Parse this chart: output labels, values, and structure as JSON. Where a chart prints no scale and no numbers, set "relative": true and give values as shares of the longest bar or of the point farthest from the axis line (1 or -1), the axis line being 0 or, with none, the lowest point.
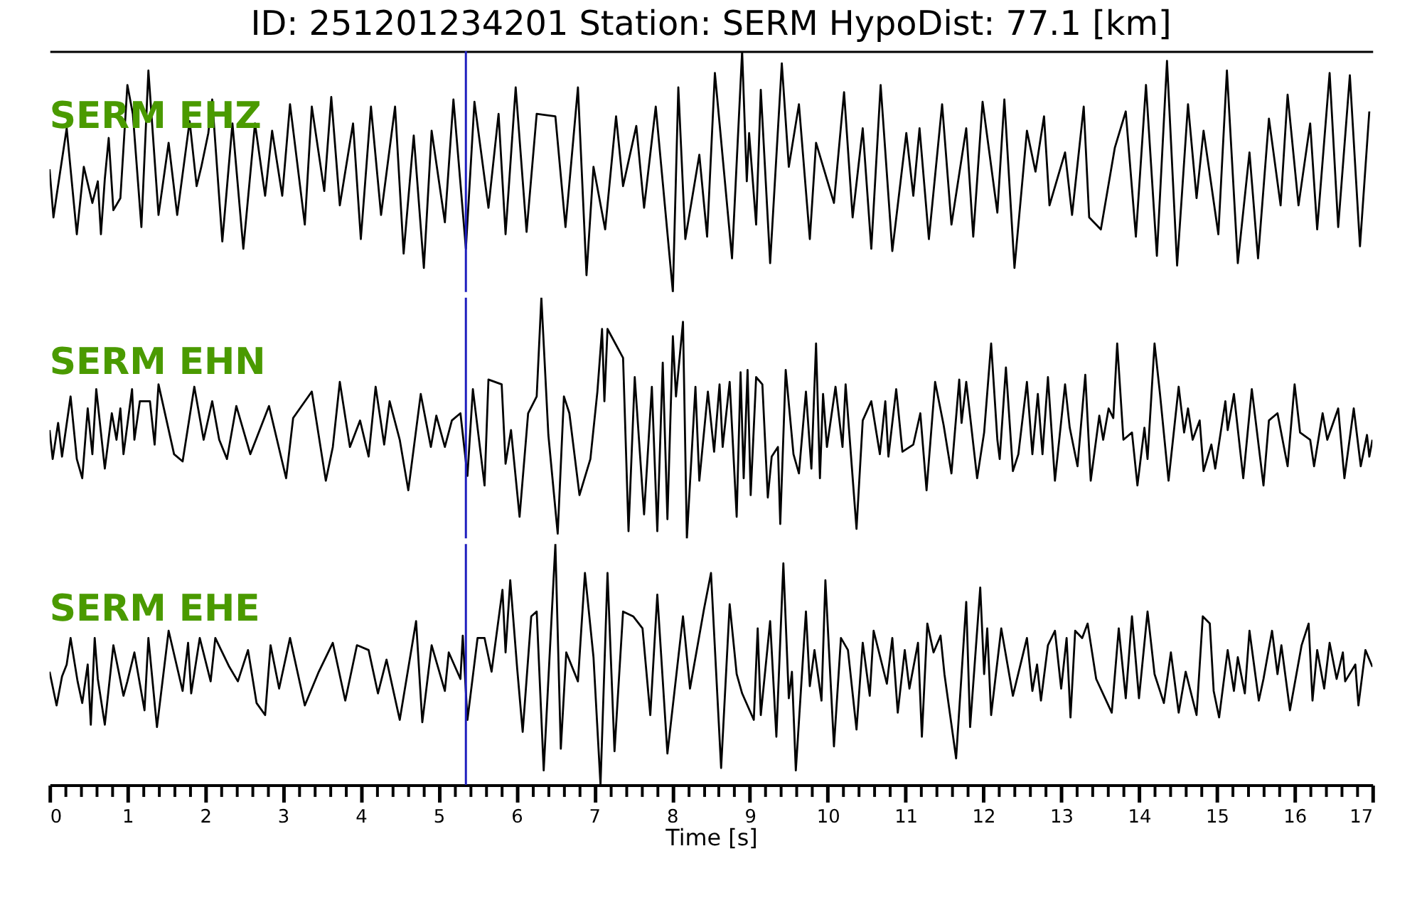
{
  "chart_data": [
    {
      "type": "line",
      "title": "ID: 251201234201   Station: SERM   HypoDist:    77.1 [km]",
      "relative": true,
      "tick_labels": false,
      "xlim": [
        0,
        17
      ],
      "annotations": [
        "SERM EHZ"
      ],
      "ref_lines": [
        {
          "axis": "x",
          "value": 5.35,
          "color": "#1f1fbf"
        }
      ],
      "series": [
        {
          "color": "#000000",
          "x": [
            0.0,
            0.05,
            0.09,
            0.22,
            0.35,
            0.44,
            0.55,
            0.62,
            0.66,
            0.71,
            0.76,
            0.82,
            0.91,
            1.0,
            1.07,
            1.18,
            1.27,
            1.4,
            1.53,
            1.64,
            1.8,
            1.89,
            1.95,
            2.04,
            2.09,
            2.22,
            2.35,
            2.49,
            2.64,
            2.77,
            2.86,
            2.99,
            3.09,
            3.28,
            3.37,
            3.53,
            3.62,
            3.73,
            3.9,
            4.0,
            4.13,
            4.26,
            4.44,
            4.55,
            4.68,
            4.81,
            4.91,
            5.08,
            5.19,
            5.35,
            5.46,
            5.64,
            5.77,
            5.86,
            5.99,
            6.13,
            6.26,
            6.5,
            6.63,
            6.79,
            6.9,
            6.99,
            7.14,
            7.28,
            7.37,
            7.54,
            7.64,
            7.79,
            8.01,
            8.08,
            8.17,
            8.35,
            8.45,
            8.55,
            8.77,
            8.9,
            8.96,
            8.99,
            9.08,
            9.14,
            9.26,
            9.41,
            9.5,
            9.63,
            9.77,
            9.85,
            10.08,
            10.21,
            10.32,
            10.45,
            10.56,
            10.68,
            10.83,
            11.01,
            11.1,
            11.18,
            11.3,
            11.47,
            11.59,
            11.78,
            11.87,
            11.99,
            12.18,
            12.27,
            12.4,
            12.56,
            12.67,
            12.78,
            12.85,
            13.05,
            13.14,
            13.29,
            13.36,
            13.51,
            13.69,
            13.83,
            13.96,
            14.09,
            14.23,
            14.36,
            14.49,
            14.63,
            14.74,
            14.83,
            15.02,
            15.13,
            15.27,
            15.42,
            15.53,
            15.67,
            15.82,
            15.91,
            16.05,
            16.2,
            16.29,
            16.45,
            16.56,
            16.71,
            16.84,
            16.96
          ],
          "values": [
            0.51,
            0.31,
            0.4,
            0.68,
            0.24,
            0.52,
            0.37,
            0.46,
            0.24,
            0.47,
            0.64,
            0.34,
            0.39,
            0.86,
            0.74,
            0.27,
            0.92,
            0.32,
            0.62,
            0.32,
            0.71,
            0.44,
            0.52,
            0.66,
            0.8,
            0.21,
            0.7,
            0.18,
            0.7,
            0.4,
            0.67,
            0.4,
            0.78,
            0.28,
            0.77,
            0.42,
            0.81,
            0.36,
            0.7,
            0.22,
            0.77,
            0.32,
            0.77,
            0.16,
            0.65,
            0.1,
            0.67,
            0.29,
            0.8,
            0.18,
            0.79,
            0.35,
            0.74,
            0.24,
            0.85,
            0.25,
            0.74,
            0.73,
            0.27,
            0.85,
            0.07,
            0.52,
            0.26,
            0.73,
            0.44,
            0.69,
            0.35,
            0.77,
            0.0,
            0.85,
            0.22,
            0.57,
            0.23,
            0.91,
            0.14,
            1.0,
            0.46,
            0.66,
            0.28,
            0.84,
            0.12,
            0.95,
            0.52,
            0.78,
            0.22,
            0.62,
            0.37,
            0.83,
            0.31,
            0.68,
            0.18,
            0.86,
            0.17,
            0.66,
            0.4,
            0.68,
            0.22,
            0.78,
            0.28,
            0.68,
            0.23,
            0.79,
            0.33,
            0.8,
            0.1,
            0.67,
            0.5,
            0.73,
            0.36,
            0.58,
            0.32,
            0.77,
            0.31,
            0.26,
            0.6,
            0.75,
            0.23,
            0.86,
            0.15,
            0.96,
            0.11,
            0.78,
            0.39,
            0.67,
            0.24,
            0.92,
            0.12,
            0.58,
            0.14,
            0.72,
            0.36,
            0.82,
            0.36,
            0.7,
            0.26,
            0.91,
            0.27,
            0.9,
            0.19,
            0.75
          ]
        }
      ]
    },
    {
      "type": "line",
      "relative": true,
      "tick_labels": false,
      "xlim": [
        0,
        17
      ],
      "annotations": [
        "SERM EHN"
      ],
      "ref_lines": [
        {
          "axis": "x",
          "value": 5.35,
          "color": "#1f1fbf"
        }
      ],
      "series": [
        {
          "color": "#000000",
          "x": [
            0.0,
            0.04,
            0.11,
            0.16,
            0.27,
            0.35,
            0.42,
            0.49,
            0.55,
            0.6,
            0.71,
            0.8,
            0.86,
            0.91,
            0.95,
            1.06,
            1.09,
            1.16,
            1.29,
            1.35,
            1.4,
            1.6,
            1.71,
            1.86,
            1.98,
            2.09,
            2.18,
            2.28,
            2.4,
            2.58,
            2.82,
            3.04,
            3.13,
            3.37,
            3.55,
            3.64,
            3.73,
            3.86,
            3.99,
            4.1,
            4.19,
            4.3,
            4.37,
            4.5,
            4.61,
            4.77,
            4.9,
            4.97,
            5.08,
            5.17,
            5.28,
            5.37,
            5.44,
            5.59,
            5.64,
            5.81,
            5.86,
            5.93,
            6.04,
            6.15,
            6.26,
            6.32,
            6.41,
            6.53,
            6.61,
            6.68,
            6.81,
            6.95,
            7.04,
            7.1,
            7.13,
            7.17,
            7.37,
            7.44,
            7.52,
            7.64,
            7.74,
            7.81,
            7.88,
            7.94,
            8.01,
            8.05,
            8.14,
            8.19,
            8.3,
            8.35,
            8.46,
            8.54,
            8.61,
            8.65,
            8.74,
            8.83,
            8.88,
            8.92,
            8.97,
            9.01,
            9.08,
            9.16,
            9.23,
            9.28,
            9.36,
            9.39,
            9.46,
            9.56,
            9.63,
            9.72,
            9.79,
            9.85,
            9.9,
            9.94,
            9.99,
            10.1,
            10.19,
            10.23,
            10.37,
            10.45,
            10.56,
            10.67,
            10.74,
            10.78,
            10.88,
            10.96,
            11.1,
            11.19,
            11.27,
            11.38,
            11.49,
            11.59,
            11.69,
            11.72,
            11.78,
            11.92,
            12.01,
            12.1,
            12.18,
            12.21,
            12.29,
            12.38,
            12.45,
            12.56,
            12.63,
            12.7,
            12.76,
            12.83,
            12.92,
            13.05,
            13.11,
            13.21,
            13.31,
            13.38,
            13.49,
            13.54,
            13.61,
            13.67,
            13.72,
            13.8,
            13.91,
            13.98,
            14.07,
            14.11,
            14.2,
            14.27,
            14.38,
            14.51,
            14.58,
            14.63,
            14.69,
            14.78,
            14.83,
            14.93,
            14.98,
            15.11,
            15.14,
            15.22,
            15.34,
            15.45,
            15.6,
            15.67,
            15.78,
            15.91,
            16.0,
            16.07,
            16.2,
            16.25,
            16.36,
            16.42,
            16.56,
            16.64,
            16.76,
            16.85,
            16.93,
            16.96,
            17.0
          ],
          "values": [
            0.45,
            0.33,
            0.48,
            0.34,
            0.59,
            0.33,
            0.25,
            0.54,
            0.35,
            0.62,
            0.29,
            0.52,
            0.41,
            0.54,
            0.35,
            0.62,
            0.41,
            0.57,
            0.57,
            0.39,
            0.64,
            0.35,
            0.32,
            0.63,
            0.41,
            0.57,
            0.41,
            0.33,
            0.55,
            0.35,
            0.55,
            0.25,
            0.5,
            0.61,
            0.24,
            0.38,
            0.65,
            0.38,
            0.49,
            0.34,
            0.63,
            0.39,
            0.57,
            0.41,
            0.2,
            0.6,
            0.38,
            0.51,
            0.38,
            0.49,
            0.52,
            0.26,
            0.62,
            0.22,
            0.66,
            0.64,
            0.31,
            0.45,
            0.09,
            0.52,
            0.59,
            1.0,
            0.43,
            0.02,
            0.59,
            0.52,
            0.18,
            0.33,
            0.61,
            0.87,
            0.57,
            0.87,
            0.75,
            0.03,
            0.67,
            0.1,
            0.63,
            0.03,
            0.73,
            0.08,
            0.84,
            0.59,
            0.9,
            0.0,
            0.63,
            0.24,
            0.61,
            0.36,
            0.64,
            0.38,
            0.65,
            0.09,
            0.69,
            0.25,
            0.7,
            0.18,
            0.67,
            0.64,
            0.17,
            0.34,
            0.38,
            0.06,
            0.7,
            0.35,
            0.27,
            0.61,
            0.29,
            0.81,
            0.25,
            0.6,
            0.38,
            0.63,
            0.38,
            0.64,
            0.04,
            0.49,
            0.57,
            0.35,
            0.57,
            0.34,
            0.62,
            0.36,
            0.39,
            0.52,
            0.2,
            0.65,
            0.47,
            0.27,
            0.66,
            0.48,
            0.65,
            0.25,
            0.44,
            0.81,
            0.41,
            0.33,
            0.71,
            0.28,
            0.35,
            0.65,
            0.35,
            0.6,
            0.35,
            0.67,
            0.24,
            0.64,
            0.46,
            0.3,
            0.68,
            0.24,
            0.51,
            0.41,
            0.54,
            0.5,
            0.81,
            0.41,
            0.44,
            0.22,
            0.46,
            0.33,
            0.81,
            0.6,
            0.24,
            0.63,
            0.44,
            0.54,
            0.41,
            0.49,
            0.28,
            0.39,
            0.29,
            0.57,
            0.45,
            0.6,
            0.25,
            0.62,
            0.22,
            0.49,
            0.52,
            0.3,
            0.64,
            0.44,
            0.41,
            0.3,
            0.52,
            0.41,
            0.54,
            0.25,
            0.54,
            0.3,
            0.43,
            0.34,
            0.41
          ]
        }
      ]
    },
    {
      "type": "line",
      "relative": true,
      "tick_labels": "x",
      "xlabel": "Time [s]",
      "xlim": [
        0,
        17
      ],
      "annotations": [
        "SERM EHE"
      ],
      "xticks": [
        0,
        {
          "value": 0.2,
          "label": null
        },
        {
          "value": 0.4,
          "label": null
        },
        {
          "value": 0.6,
          "label": null
        },
        {
          "value": 0.8,
          "label": null
        },
        1,
        {
          "value": 1.2,
          "label": null
        },
        {
          "value": 1.4,
          "label": null
        },
        {
          "value": 1.6,
          "label": null
        },
        {
          "value": 1.8,
          "label": null
        },
        2,
        {
          "value": 2.2,
          "label": null
        },
        {
          "value": 2.4,
          "label": null
        },
        {
          "value": 2.6,
          "label": null
        },
        {
          "value": 2.8,
          "label": null
        },
        3,
        {
          "value": 3.2,
          "label": null
        },
        {
          "value": 3.4,
          "label": null
        },
        {
          "value": 3.6,
          "label": null
        },
        {
          "value": 3.8,
          "label": null
        },
        4,
        {
          "value": 4.2,
          "label": null
        },
        {
          "value": 4.4,
          "label": null
        },
        {
          "value": 4.6,
          "label": null
        },
        {
          "value": 4.8,
          "label": null
        },
        5,
        {
          "value": 5.2,
          "label": null
        },
        {
          "value": 5.4,
          "label": null
        },
        {
          "value": 5.6,
          "label": null
        },
        {
          "value": 5.8,
          "label": null
        },
        6,
        {
          "value": 6.2,
          "label": null
        },
        {
          "value": 6.4,
          "label": null
        },
        {
          "value": 6.6,
          "label": null
        },
        {
          "value": 6.8,
          "label": null
        },
        7,
        {
          "value": 7.2,
          "label": null
        },
        {
          "value": 7.4,
          "label": null
        },
        {
          "value": 7.6,
          "label": null
        },
        {
          "value": 7.8,
          "label": null
        },
        8,
        {
          "value": 8.2,
          "label": null
        },
        {
          "value": 8.4,
          "label": null
        },
        {
          "value": 8.6,
          "label": null
        },
        {
          "value": 8.8,
          "label": null
        },
        9,
        {
          "value": 9.2,
          "label": null
        },
        {
          "value": 9.4,
          "label": null
        },
        {
          "value": 9.6,
          "label": null
        },
        {
          "value": 9.8,
          "label": null
        },
        10,
        {
          "value": 10.2,
          "label": null
        },
        {
          "value": 10.4,
          "label": null
        },
        {
          "value": 10.6,
          "label": null
        },
        {
          "value": 10.8,
          "label": null
        },
        11,
        {
          "value": 11.2,
          "label": null
        },
        {
          "value": 11.4,
          "label": null
        },
        {
          "value": 11.6,
          "label": null
        },
        {
          "value": 11.8,
          "label": null
        },
        12,
        {
          "value": 12.2,
          "label": null
        },
        {
          "value": 12.4,
          "label": null
        },
        {
          "value": 12.6,
          "label": null
        },
        {
          "value": 12.8,
          "label": null
        },
        13,
        {
          "value": 13.2,
          "label": null
        },
        {
          "value": 13.4,
          "label": null
        },
        {
          "value": 13.6,
          "label": null
        },
        {
          "value": 13.8,
          "label": null
        },
        14,
        {
          "value": 14.2,
          "label": null
        },
        {
          "value": 14.4,
          "label": null
        },
        {
          "value": 14.6,
          "label": null
        },
        {
          "value": 14.8,
          "label": null
        },
        15,
        {
          "value": 15.2,
          "label": null
        },
        {
          "value": 15.4,
          "label": null
        },
        {
          "value": 15.6,
          "label": null
        },
        {
          "value": 15.8,
          "label": null
        },
        16,
        {
          "value": 16.2,
          "label": null
        },
        {
          "value": 16.4,
          "label": null
        },
        {
          "value": 16.6,
          "label": null
        },
        {
          "value": 16.8,
          "label": null
        },
        17
      ],
      "ref_lines": [
        {
          "axis": "x",
          "value": 5.35,
          "color": "#1f1fbf"
        }
      ],
      "series": [
        {
          "color": "#000000",
          "x": [
            0.0,
            0.09,
            0.16,
            0.22,
            0.27,
            0.36,
            0.42,
            0.49,
            0.53,
            0.58,
            0.62,
            0.71,
            0.82,
            0.95,
            1.0,
            1.09,
            1.16,
            1.22,
            1.27,
            1.38,
            1.53,
            1.71,
            1.78,
            1.82,
            1.93,
            2.07,
            2.13,
            2.31,
            2.42,
            2.55,
            2.66,
            2.77,
            2.84,
            2.95,
            3.09,
            3.28,
            3.46,
            3.64,
            3.8,
            3.95,
            4.1,
            4.22,
            4.33,
            4.5,
            4.71,
            4.79,
            4.91,
            5.08,
            5.13,
            5.28,
            5.31,
            5.37,
            5.5,
            5.59,
            5.68,
            5.82,
            5.86,
            5.92,
            6.01,
            6.08,
            6.19,
            6.26,
            6.35,
            6.5,
            6.57,
            6.64,
            6.79,
            6.88,
            6.99,
            7.08,
            7.17,
            7.26,
            7.37,
            7.5,
            7.62,
            7.72,
            7.81,
            7.94,
            8.14,
            8.23,
            8.41,
            8.5,
            8.63,
            8.74,
            8.83,
            8.9,
            9.05,
            9.1,
            9.14,
            9.26,
            9.34,
            9.43,
            9.5,
            9.54,
            9.59,
            9.72,
            9.77,
            9.83,
            9.92,
            9.97,
            10.08,
            10.17,
            10.26,
            10.37,
            10.45,
            10.54,
            10.59,
            10.76,
            10.83,
            10.9,
            10.99,
            11.05,
            11.16,
            11.21,
            11.28,
            11.36,
            11.45,
            11.5,
            11.65,
            11.78,
            11.83,
            11.96,
            12.01,
            12.05,
            12.1,
            12.23,
            12.38,
            12.56,
            12.63,
            12.69,
            12.74,
            12.83,
            12.92,
            13.0,
            13.07,
            13.12,
            13.18,
            13.27,
            13.34,
            13.45,
            13.65,
            13.74,
            13.83,
            13.91,
            14.0,
            14.11,
            14.2,
            14.32,
            14.41,
            14.51,
            14.6,
            14.74,
            14.82,
            14.91,
            14.96,
            15.03,
            15.14,
            15.22,
            15.27,
            15.36,
            15.42,
            15.54,
            15.6,
            15.71,
            15.78,
            15.83,
            15.94,
            16.09,
            16.18,
            16.23,
            16.29,
            16.38,
            16.45,
            16.54,
            16.62,
            16.65,
            16.78,
            16.82,
            16.91,
            17.0
          ],
          "values": [
            0.47,
            0.33,
            0.45,
            0.5,
            0.61,
            0.43,
            0.34,
            0.5,
            0.25,
            0.61,
            0.44,
            0.25,
            0.58,
            0.37,
            0.43,
            0.55,
            0.42,
            0.31,
            0.61,
            0.24,
            0.64,
            0.39,
            0.59,
            0.38,
            0.61,
            0.43,
            0.61,
            0.49,
            0.43,
            0.56,
            0.34,
            0.29,
            0.58,
            0.4,
            0.61,
            0.33,
            0.47,
            0.59,
            0.35,
            0.58,
            0.56,
            0.38,
            0.52,
            0.27,
            0.68,
            0.26,
            0.58,
            0.39,
            0.55,
            0.44,
            0.62,
            0.27,
            0.61,
            0.61,
            0.47,
            0.81,
            0.55,
            0.85,
            0.48,
            0.22,
            0.7,
            0.72,
            0.06,
            1.0,
            0.15,
            0.55,
            0.43,
            0.88,
            0.53,
            0.0,
            0.88,
            0.14,
            0.72,
            0.7,
            0.65,
            0.29,
            0.79,
            0.13,
            0.7,
            0.4,
            0.73,
            0.88,
            0.07,
            0.75,
            0.46,
            0.38,
            0.27,
            0.65,
            0.29,
            0.68,
            0.2,
            0.92,
            0.36,
            0.47,
            0.06,
            0.72,
            0.41,
            0.56,
            0.35,
            0.85,
            0.16,
            0.61,
            0.56,
            0.23,
            0.59,
            0.37,
            0.64,
            0.42,
            0.61,
            0.3,
            0.56,
            0.4,
            0.59,
            0.2,
            0.67,
            0.55,
            0.62,
            0.46,
            0.11,
            0.76,
            0.24,
            0.82,
            0.46,
            0.65,
            0.29,
            0.65,
            0.37,
            0.61,
            0.39,
            0.5,
            0.35,
            0.58,
            0.64,
            0.4,
            0.61,
            0.28,
            0.64,
            0.61,
            0.67,
            0.44,
            0.3,
            0.65,
            0.36,
            0.7,
            0.36,
            0.72,
            0.46,
            0.34,
            0.55,
            0.3,
            0.47,
            0.29,
            0.7,
            0.67,
            0.39,
            0.28,
            0.56,
            0.39,
            0.53,
            0.38,
            0.64,
            0.35,
            0.44,
            0.64,
            0.46,
            0.58,
            0.31,
            0.58,
            0.67,
            0.35,
            0.56,
            0.4,
            0.59,
            0.44,
            0.55,
            0.43,
            0.5,
            0.33,
            0.56,
            0.49
          ]
        }
      ]
    }
  ]
}
